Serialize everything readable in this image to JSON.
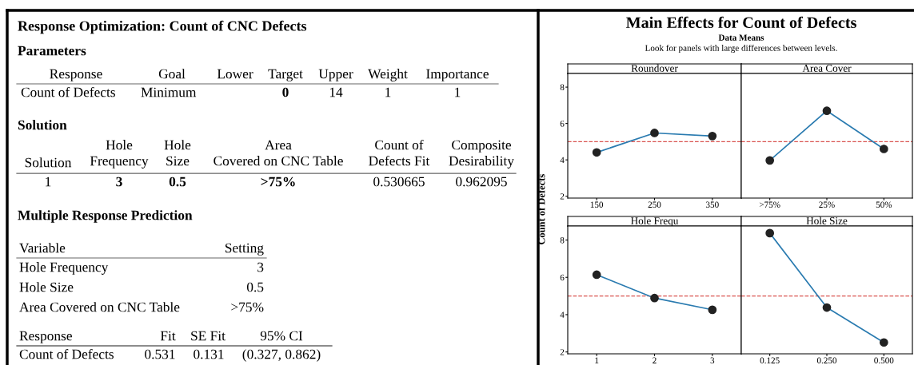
{
  "chart_data": [
    {
      "type": "other",
      "title": "Response Optimization: Count of CNC Defects",
      "annotations": [
        "Parameters",
        "Response",
        "Goal",
        "Lower",
        "Target",
        "Upper",
        "Weight",
        "Importance",
        "Count of Defects",
        "Minimum",
        "0",
        "14",
        "1",
        "1",
        "Solution",
        "Solution",
        "Hole\nFrequency",
        "Hole\nSize",
        "Area\nCovered on CNC Table",
        "Count of\nDefects Fit",
        "Composite\nDesirability",
        "1",
        "3",
        "0.5",
        ">75%",
        "0.530665",
        "0.962095",
        "Multiple Response Prediction",
        "Variable",
        "Setting",
        "Hole Frequency",
        "3",
        "Hole Size",
        "0.5",
        "Area Covered on CNC Table",
        ">75%",
        "Response",
        "Fit",
        "SE Fit",
        "95% CI",
        "Count of Defects",
        "0.531",
        "0.131",
        "(0.327, 0.862)"
      ]
    },
    {
      "type": "other",
      "title": "Main Effects for Count of Defects",
      "subtitle": "Data Means",
      "annotations": [
        "Look for panels with large differences between levels."
      ]
    },
    {
      "type": "line",
      "title": "Roundover",
      "categories": [
        "150",
        "250",
        "350"
      ],
      "series": [
        {
          "color": "#2a7bb0",
          "colors": [
            "#222222",
            "#222222",
            "#222222"
          ],
          "values": [
            4.41,
            5.48,
            5.31
          ]
        }
      ],
      "ylim": [
        1.9,
        8.75
      ],
      "yticks": [
        2,
        4,
        6,
        8
      ],
      "ref_lines": [
        {
          "axis": "y",
          "value": 5.0,
          "color": "#d9534f",
          "line_style": "dashed"
        }
      ],
      "marker": "circle"
    },
    {
      "type": "line",
      "title": "Area Cover",
      "categories": [
        ">75%",
        "25%",
        "50%"
      ],
      "series": [
        {
          "color": "#2a7bb0",
          "colors": [
            "#222222",
            "#222222",
            "#222222"
          ],
          "values": [
            3.97,
            6.7,
            4.6
          ]
        }
      ],
      "ylim": [
        1.9,
        8.75
      ],
      "yticks": [
        2,
        4,
        6,
        8
      ],
      "ref_lines": [
        {
          "axis": "y",
          "value": 5.0,
          "color": "#d9534f",
          "line_style": "dashed"
        }
      ],
      "marker": "circle",
      "tick_labels": "x"
    },
    {
      "type": "line",
      "title": "Hole Frequ",
      "ylabel": "Count of Defects",
      "categories": [
        "1",
        "2",
        "3"
      ],
      "series": [
        {
          "color": "#2a7bb0",
          "colors": [
            "#222222",
            "#222222",
            "#222222"
          ],
          "values": [
            6.14,
            4.89,
            4.26
          ]
        }
      ],
      "ylim": [
        1.9,
        8.75
      ],
      "yticks": [
        2,
        4,
        6,
        8
      ],
      "ref_lines": [
        {
          "axis": "y",
          "value": 5.0,
          "color": "#d9534f",
          "line_style": "dashed"
        }
      ],
      "marker": "circle"
    },
    {
      "type": "line",
      "title": "Hole Size",
      "categories": [
        "0.125",
        "0.250",
        "0.500"
      ],
      "series": [
        {
          "color": "#2a7bb0",
          "colors": [
            "#222222",
            "#222222",
            "#222222"
          ],
          "values": [
            8.37,
            4.38,
            2.51
          ]
        }
      ],
      "ylim": [
        1.9,
        8.75
      ],
      "yticks": [
        2,
        4,
        6,
        8
      ],
      "ref_lines": [
        {
          "axis": "y",
          "value": 5.0,
          "color": "#d9534f",
          "line_style": "dashed"
        }
      ],
      "marker": "circle",
      "tick_labels": "x"
    }
  ]
}
